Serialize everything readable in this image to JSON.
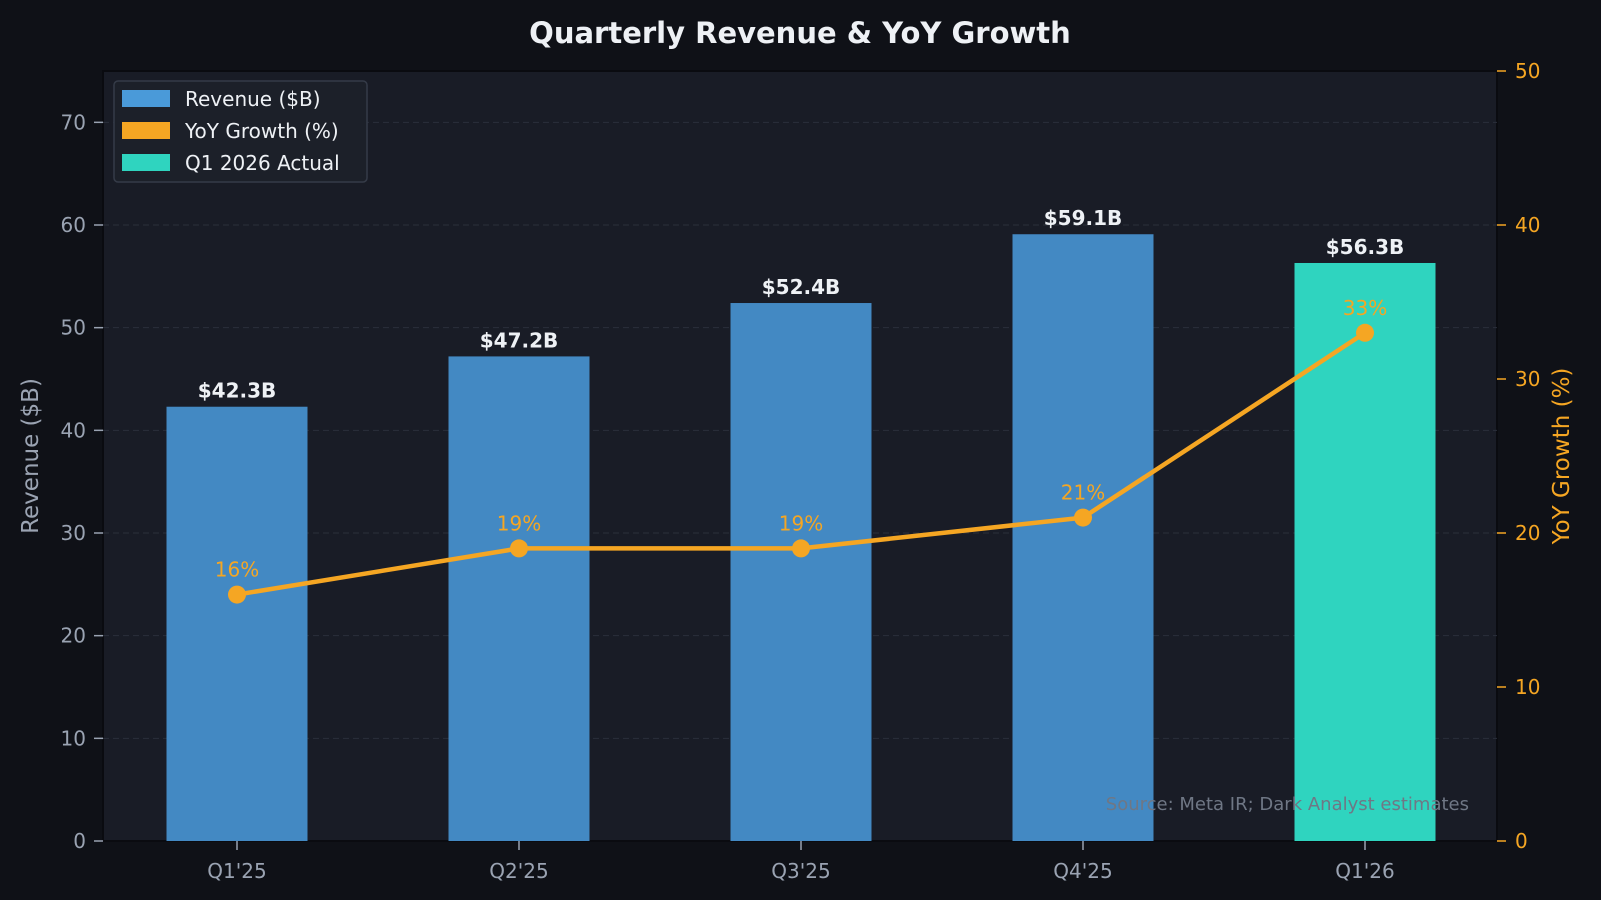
{
  "chart_data": {
    "type": "bar",
    "title": "Quarterly Revenue & YoY Growth",
    "categories": [
      "Q1'25",
      "Q2'25",
      "Q3'25",
      "Q4'25",
      "Q1'26"
    ],
    "series": [
      {
        "name": "Revenue ($B)",
        "type": "bar",
        "axis": "left",
        "values": [
          42.3,
          47.2,
          52.4,
          59.1,
          56.3
        ],
        "labels": [
          "$42.3B",
          "$47.2B",
          "$52.4B",
          "$59.1B",
          "$56.3B"
        ],
        "color": "#4389c3",
        "highlight_color": "#2fd4bf"
      },
      {
        "name": "YoY Growth (%)",
        "type": "line",
        "axis": "right",
        "values": [
          16,
          19,
          19,
          21,
          33
        ],
        "labels": [
          "16%",
          "19%",
          "19%",
          "21%",
          "33%"
        ],
        "color": "#f5a623"
      }
    ],
    "highlight": {
      "name": "Q1 2026 Actual",
      "index": 4,
      "color": "#2fd4bf"
    },
    "ylabel": "Revenue ($B)",
    "y2label": "YoY Growth (%)",
    "ylim": [
      0,
      75
    ],
    "y2lim": [
      0,
      50
    ],
    "yticks": [
      0,
      10,
      20,
      30,
      40,
      50,
      60,
      70
    ],
    "y2ticks": [
      0,
      10,
      20,
      30,
      40,
      50
    ],
    "grid": true,
    "legend": "top-left",
    "annotation": "Source: Meta IR; Dark Analyst estimates"
  }
}
